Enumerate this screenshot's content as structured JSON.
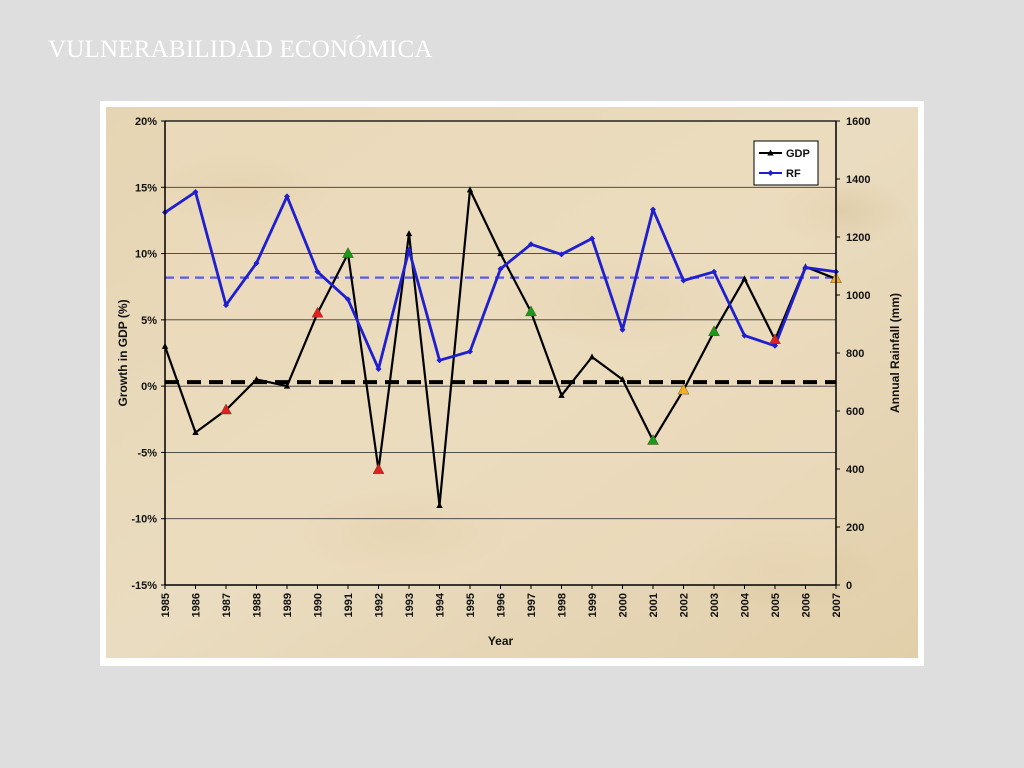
{
  "slide": {
    "title": "VULNERABILIDAD ECONÓMICA"
  },
  "chart_data": {
    "type": "line",
    "xlabel": "Year",
    "ylabel_left": "Growth in GDP (%)",
    "ylabel_right": "Annual Rainfall (mm)",
    "ylim_left": [
      -15,
      20
    ],
    "ylim_right": [
      0,
      1600
    ],
    "yticks_left": [
      "20%",
      "15%",
      "10%",
      "5%",
      "0%",
      "-5%",
      "-10%",
      "-15%"
    ],
    "yticks_right": [
      "1600",
      "1400",
      "1200",
      "1000",
      "800",
      "600",
      "400",
      "200",
      "0"
    ],
    "grid": true,
    "legend_position": "top-right",
    "x": [
      1985,
      1986,
      1987,
      1988,
      1989,
      1990,
      1991,
      1992,
      1993,
      1994,
      1995,
      1996,
      1997,
      1998,
      1999,
      2000,
      2001,
      2002,
      2003,
      2004,
      2005,
      2006,
      2007
    ],
    "x_labels": [
      "1985",
      "1986",
      "1987",
      "1988",
      "1989",
      "1990",
      "1991",
      "1992",
      "1993",
      "1994",
      "1995",
      "1996",
      "1997",
      "1998",
      "1999",
      "2000",
      "2001",
      "2002",
      "2003",
      "2004",
      "2005",
      "2006",
      "2007"
    ],
    "series": [
      {
        "name": "GDP",
        "axis": "left",
        "color": "#000000",
        "values": [
          3.0,
          -3.5,
          -1.8,
          0.5,
          0.0,
          5.5,
          10.0,
          -6.3,
          11.5,
          -9.0,
          14.8,
          10.0,
          5.6,
          -0.7,
          2.2,
          0.5,
          -4.1,
          -0.3,
          4.1,
          8.1,
          3.5,
          9.0,
          8.1
        ]
      },
      {
        "name": "RF",
        "axis": "right",
        "color": "#1f1fd0",
        "values": [
          1285,
          1355,
          965,
          1110,
          1340,
          1080,
          985,
          745,
          1155,
          775,
          805,
          1090,
          1175,
          1140,
          1195,
          880,
          1295,
          1050,
          1080,
          860,
          825,
          1095,
          1080
        ]
      }
    ],
    "reference_lines": [
      {
        "axis": "left",
        "value": 0.3,
        "color": "#000000",
        "style": "dashed"
      },
      {
        "axis": "right",
        "value": 1060,
        "color": "#5a5af0",
        "style": "dashed"
      }
    ],
    "gdp_markers": [
      {
        "year": 1987,
        "color": "#e02020"
      },
      {
        "year": 1990,
        "color": "#e02020"
      },
      {
        "year": 1991,
        "color": "#1a9a1a"
      },
      {
        "year": 1992,
        "color": "#e02020"
      },
      {
        "year": 1997,
        "color": "#1a9a1a"
      },
      {
        "year": 2001,
        "color": "#1a9a1a"
      },
      {
        "year": 2002,
        "color": "#f0b020"
      },
      {
        "year": 2003,
        "color": "#1a9a1a"
      },
      {
        "year": 2005,
        "color": "#e02020"
      },
      {
        "year": 2007,
        "color": "#f0b020"
      }
    ]
  }
}
